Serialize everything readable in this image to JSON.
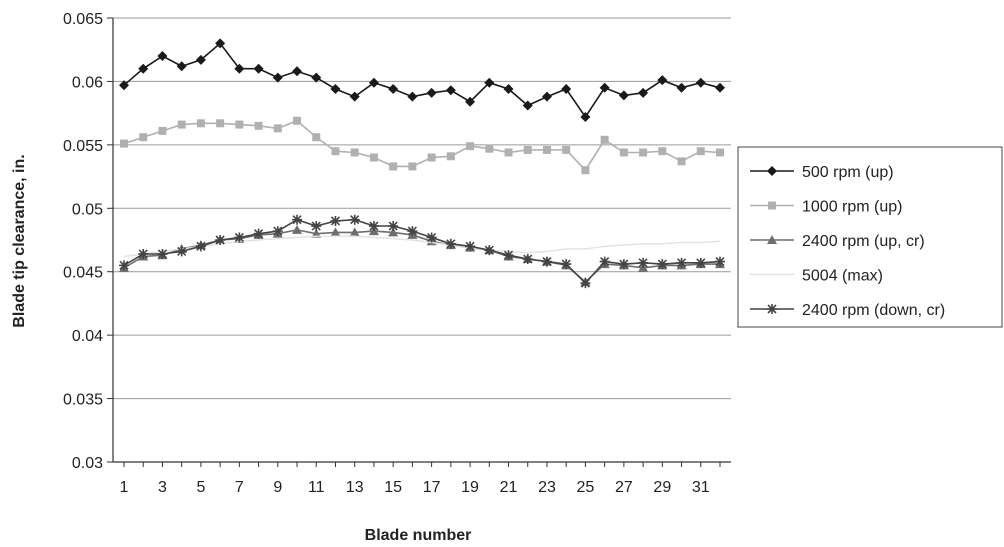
{
  "chart_data": {
    "type": "line",
    "title": "",
    "xlabel": "Blade number",
    "ylabel": "Blade tip clearance, in.",
    "xlim": [
      1,
      32
    ],
    "ylim": [
      0.03,
      0.065
    ],
    "grid": "horizontal",
    "legend_position": "right",
    "x": [
      1,
      2,
      3,
      4,
      5,
      6,
      7,
      8,
      9,
      10,
      11,
      12,
      13,
      14,
      15,
      16,
      17,
      18,
      19,
      20,
      21,
      22,
      23,
      24,
      25,
      26,
      27,
      28,
      29,
      30,
      31,
      32
    ],
    "x_tick_labels": [
      "1",
      "3",
      "5",
      "7",
      "9",
      "11",
      "13",
      "15",
      "17",
      "19",
      "21",
      "23",
      "25",
      "27",
      "29",
      "31"
    ],
    "y_ticks": [
      0.03,
      0.035,
      0.04,
      0.045,
      0.05,
      0.055,
      0.06,
      0.065
    ],
    "y_tick_labels": [
      "0.03",
      "0.035",
      "0.04",
      "0.045",
      "0.05",
      "0.055",
      "0.06",
      "0.065"
    ],
    "series": [
      {
        "name": "500 rpm (up)",
        "color": "#1a1a1a",
        "marker": "diamond",
        "values": [
          0.0597,
          0.061,
          0.062,
          0.0612,
          0.0617,
          0.063,
          0.061,
          0.061,
          0.0603,
          0.0608,
          0.0603,
          0.0594,
          0.0588,
          0.0599,
          0.0594,
          0.0588,
          0.0591,
          0.0593,
          0.0584,
          0.0599,
          0.0594,
          0.0581,
          0.0588,
          0.0594,
          0.0572,
          0.0595,
          0.0589,
          0.0591,
          0.0601,
          0.0595,
          0.0599,
          0.0595
        ]
      },
      {
        "name": "1000 rpm (up)",
        "color": "#b0b0b0",
        "marker": "square",
        "values": [
          0.0551,
          0.0556,
          0.0561,
          0.0566,
          0.0567,
          0.0567,
          0.0566,
          0.0565,
          0.0563,
          0.0569,
          0.0556,
          0.0545,
          0.0544,
          0.054,
          0.0533,
          0.0533,
          0.054,
          0.0541,
          0.0549,
          0.0547,
          0.0544,
          0.0546,
          0.0546,
          0.0546,
          0.053,
          0.0554,
          0.0544,
          0.0544,
          0.0545,
          0.0537,
          0.0545,
          0.0544
        ]
      },
      {
        "name": "2400 rpm (up, cr)",
        "color": "#6e6e6e",
        "marker": "triangle",
        "values": [
          0.0453,
          0.0462,
          0.0463,
          0.0468,
          0.0471,
          0.0475,
          0.0476,
          0.0479,
          0.048,
          0.0483,
          0.048,
          0.0481,
          0.0481,
          0.0482,
          0.0481,
          0.0479,
          0.0474,
          0.0471,
          0.0469,
          0.0467,
          0.0462,
          0.046,
          0.0458,
          0.0455,
          0.0442,
          0.0456,
          0.0455,
          0.0453,
          0.0455,
          0.0455,
          0.0456,
          0.0456
        ]
      },
      {
        "name": "5004 (max)",
        "color": "#e2e2e2",
        "marker": "none",
        "values": [
          0.0462,
          0.0464,
          0.0466,
          0.0468,
          0.047,
          0.0472,
          0.0474,
          0.0475,
          0.0476,
          0.0477,
          0.0478,
          0.0478,
          0.0478,
          0.0477,
          0.0476,
          0.0475,
          0.0473,
          0.0471,
          0.0469,
          0.0467,
          0.0466,
          0.0465,
          0.0466,
          0.0468,
          0.0468,
          0.047,
          0.0471,
          0.0472,
          0.0472,
          0.0473,
          0.0473,
          0.0474
        ]
      },
      {
        "name": "2400 rpm (down, cr)",
        "color": "#444444",
        "marker": "star",
        "values": [
          0.0455,
          0.0464,
          0.0464,
          0.0466,
          0.047,
          0.0475,
          0.0477,
          0.048,
          0.0482,
          0.0491,
          0.0486,
          0.049,
          0.0491,
          0.0486,
          0.0486,
          0.0482,
          0.0477,
          0.0472,
          0.047,
          0.0467,
          0.0463,
          0.046,
          0.0458,
          0.0456,
          0.0441,
          0.0458,
          0.0456,
          0.0457,
          0.0456,
          0.0457,
          0.0457,
          0.0458
        ]
      }
    ]
  }
}
